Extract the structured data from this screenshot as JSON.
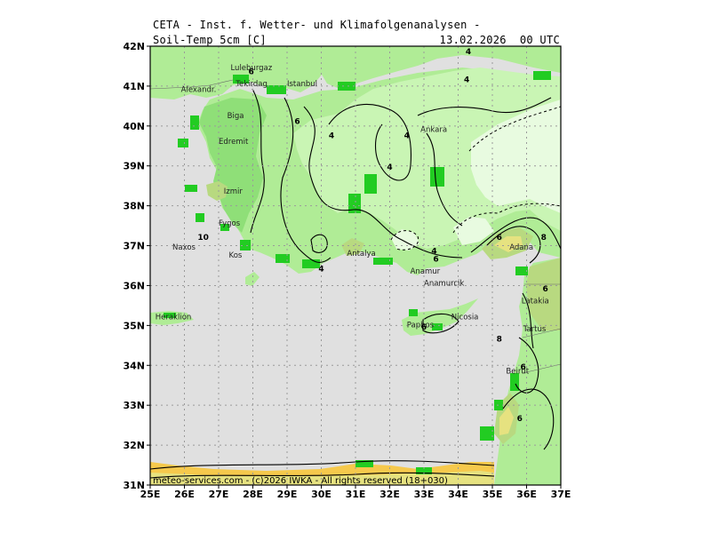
{
  "header": {
    "title": "CETA - Inst. f. Wetter- und Klimafolgenanalysen -",
    "parameter": "Soil-Temp 5cm [C]",
    "valid_time": "13.02.2026  00 UTC"
  },
  "map": {
    "lon_range": [
      25,
      37
    ],
    "lat_range": [
      31,
      42
    ],
    "x_ticks": [
      "25E",
      "26E",
      "27E",
      "28E",
      "29E",
      "30E",
      "31E",
      "32E",
      "33E",
      "34E",
      "35E",
      "36E",
      "37E"
    ],
    "y_ticks": [
      "42N",
      "41N",
      "40N",
      "39N",
      "38N",
      "37N",
      "36N",
      "35N",
      "34N",
      "33N",
      "32N",
      "31N"
    ],
    "colors": {
      "sea": "#e0e0e0",
      "band_0_2": "#e8fbe0",
      "band_2_4": "#c9f5b4",
      "band_4_6": "#b0ec96",
      "band_6_8": "#8fdf78",
      "band_8_10": "#b8d980",
      "band_10_12": "#e6e280",
      "band_12_14": "#f6c94c",
      "bright_green": "#22cc22"
    },
    "cities": [
      {
        "name": "Luleburgaz",
        "lon": 27.35,
        "lat": 41.4
      },
      {
        "name": "Tekirdag",
        "lon": 27.5,
        "lat": 41.0
      },
      {
        "name": "Istanbul",
        "lon": 29.0,
        "lat": 41.0
      },
      {
        "name": "Alexandr.",
        "lon": 25.9,
        "lat": 40.85
      },
      {
        "name": "Biga",
        "lon": 27.25,
        "lat": 40.2
      },
      {
        "name": "Edremit",
        "lon": 27.0,
        "lat": 39.55
      },
      {
        "name": "Ankara",
        "lon": 32.9,
        "lat": 39.85
      },
      {
        "name": "Izmir",
        "lon": 27.15,
        "lat": 38.3
      },
      {
        "name": "Fygos",
        "lon": 27.0,
        "lat": 37.5
      },
      {
        "name": "Naxos",
        "lon": 25.65,
        "lat": 36.9
      },
      {
        "name": "Kos",
        "lon": 27.3,
        "lat": 36.7
      },
      {
        "name": "Antalya",
        "lon": 30.75,
        "lat": 36.75
      },
      {
        "name": "Anamur",
        "lon": 32.6,
        "lat": 36.3
      },
      {
        "name": "Anamurcik",
        "lon": 33.0,
        "lat": 36.0
      },
      {
        "name": "Adana",
        "lon": 35.5,
        "lat": 36.9
      },
      {
        "name": "Latakia",
        "lon": 35.85,
        "lat": 35.55
      },
      {
        "name": "Heraklion",
        "lon": 25.15,
        "lat": 35.15
      },
      {
        "name": "Nicosia",
        "lon": 33.8,
        "lat": 35.15
      },
      {
        "name": "Paphos",
        "lon": 32.5,
        "lat": 34.95
      },
      {
        "name": "Tartus",
        "lon": 35.9,
        "lat": 34.85
      },
      {
        "name": "Beirut",
        "lon": 35.4,
        "lat": 33.8
      }
    ],
    "contour_labels": [
      {
        "text": "4",
        "lon": 34.3,
        "lat": 41.8
      },
      {
        "text": "6",
        "lon": 27.95,
        "lat": 41.3
      },
      {
        "text": "4",
        "lon": 34.25,
        "lat": 41.1
      },
      {
        "text": "6",
        "lon": 29.3,
        "lat": 40.05
      },
      {
        "text": "4",
        "lon": 30.3,
        "lat": 39.7
      },
      {
        "text": "4",
        "lon": 32.5,
        "lat": 39.7
      },
      {
        "text": "4",
        "lon": 32.0,
        "lat": 38.9
      },
      {
        "text": "10",
        "lon": 26.55,
        "lat": 37.15
      },
      {
        "text": "4",
        "lon": 30.0,
        "lat": 36.35
      },
      {
        "text": "4",
        "lon": 33.3,
        "lat": 36.8
      },
      {
        "text": "6",
        "lon": 33.35,
        "lat": 36.6
      },
      {
        "text": "6",
        "lon": 35.2,
        "lat": 37.15
      },
      {
        "text": "8",
        "lon": 36.5,
        "lat": 37.15
      },
      {
        "text": "6",
        "lon": 36.55,
        "lat": 35.85
      },
      {
        "text": "6",
        "lon": 35.9,
        "lat": 33.9
      },
      {
        "text": "6",
        "lon": 33.0,
        "lat": 34.9
      },
      {
        "text": "6",
        "lon": 35.8,
        "lat": 32.6
      },
      {
        "text": "8",
        "lon": 35.2,
        "lat": 34.6
      }
    ],
    "footer": "meteo-services.com - (c)2026 IWKA - All rights reserved (18+030)"
  }
}
